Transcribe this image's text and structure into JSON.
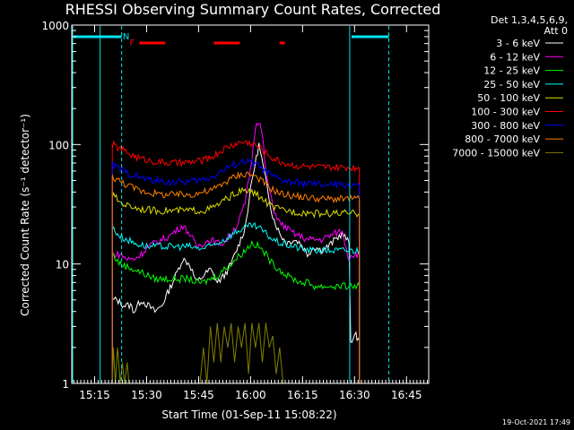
{
  "chart_data": {
    "type": "line",
    "title": "RHESSI Observing Summary Count Rates, Corrected",
    "xlabel": "Start Time (01-Sep-11 15:08:22)",
    "ylabel": "Corrected Count Rate (s⁻¹ detector⁻¹)",
    "y_scale": "log",
    "ylim": [
      1,
      1000
    ],
    "xlim_minutes_after_start": [
      0,
      103
    ],
    "x_ticks": [
      {
        "label": "15:15",
        "minute": 6.6
      },
      {
        "label": "15:30",
        "minute": 21.6
      },
      {
        "label": "15:45",
        "minute": 36.6
      },
      {
        "label": "16:00",
        "minute": 51.6
      },
      {
        "label": "16:15",
        "minute": 66.6
      },
      {
        "label": "16:30",
        "minute": 81.6
      },
      {
        "label": "16:45",
        "minute": 96.6
      }
    ],
    "y_ticks": [
      {
        "label": "1",
        "value": 1
      },
      {
        "label": "10",
        "value": 10
      },
      {
        "label": "100",
        "value": 100
      },
      {
        "label": "1000",
        "value": 1000
      }
    ],
    "legend_header": [
      "Det 1,3,4,5,6,9,",
      "Att 0"
    ],
    "legend_placement": "right",
    "flags": {
      "night_label": "N",
      "flare_label": "F",
      "night_color": "#00e5ee",
      "flare_color": "#ff0000",
      "night_bars": [
        [
          0,
          14.4
        ],
        [
          80.2,
          91.5
        ]
      ],
      "night_boundaries": [
        14.4,
        80.2,
        91.5
      ],
      "flare_bars": [
        [
          19.5,
          27.0
        ],
        [
          41.0,
          48.5
        ],
        [
          60.0,
          61.5
        ]
      ]
    },
    "series": [
      {
        "name": "3 - 6 keV",
        "color": "#ffffff",
        "x": [
          11.7,
          13,
          15,
          17,
          18,
          20,
          22,
          24,
          26,
          28,
          30,
          32,
          34,
          36,
          38,
          40,
          42,
          44,
          46,
          48,
          50,
          52,
          54,
          56,
          58,
          60,
          62,
          64,
          66,
          68,
          70,
          72,
          74,
          76,
          78,
          80.0,
          80.5,
          82,
          83
        ],
        "y": [
          5,
          5,
          4.5,
          4.5,
          4,
          5,
          4.5,
          4,
          4.5,
          6,
          8,
          11,
          10,
          7,
          8,
          9,
          7,
          8,
          10,
          14,
          20,
          50,
          100,
          50,
          25,
          18,
          15,
          16,
          15,
          12,
          14,
          13,
          14,
          16,
          18,
          15,
          2.3,
          2.5,
          2.3
        ]
      },
      {
        "name": "6 - 12 keV",
        "color": "#ff00ff",
        "x": [
          11.7,
          14,
          16,
          18,
          20,
          22,
          24,
          26,
          28,
          30,
          32,
          34,
          36,
          38,
          40,
          42,
          44,
          46,
          48,
          50,
          52,
          53,
          54,
          55,
          56,
          58,
          60,
          62,
          64,
          66,
          68,
          70,
          72,
          74,
          76,
          78,
          80.0,
          80.5,
          82,
          83
        ],
        "y": [
          12,
          12,
          11,
          11,
          12,
          14,
          15,
          16,
          17,
          19,
          21,
          18,
          14,
          15,
          16,
          15,
          15,
          18,
          22,
          32,
          75,
          145,
          160,
          120,
          60,
          30,
          22,
          20,
          18,
          17,
          16,
          16,
          16,
          17,
          18,
          19,
          11,
          12,
          12,
          12
        ]
      },
      {
        "name": "12 - 25 keV",
        "color": "#00ff00",
        "x": [
          11.7,
          14,
          16,
          18,
          20,
          22,
          24,
          26,
          28,
          30,
          32,
          34,
          36,
          38,
          40,
          42,
          44,
          46,
          48,
          50,
          52,
          54,
          56,
          58,
          60,
          62,
          64,
          66,
          68,
          70,
          72,
          74,
          76,
          78,
          80.0,
          80.5,
          82,
          83
        ],
        "y": [
          12,
          10,
          9.5,
          9,
          8.5,
          8,
          7.5,
          7.5,
          7.5,
          7.5,
          7.5,
          7.5,
          7,
          7,
          7.5,
          8,
          9,
          10,
          11.5,
          13,
          15,
          14,
          12,
          10,
          9,
          8,
          7.5,
          7,
          7,
          6.5,
          6.5,
          6.5,
          6.5,
          6.5,
          6.5,
          6.5,
          6.5,
          6.5
        ]
      },
      {
        "name": "25 - 50 keV",
        "color": "#00ffff",
        "x": [
          11.7,
          14,
          16,
          18,
          20,
          22,
          24,
          26,
          28,
          30,
          32,
          34,
          36,
          38,
          40,
          42,
          44,
          46,
          48,
          50,
          52,
          54,
          56,
          58,
          60,
          62,
          64,
          66,
          68,
          70,
          72,
          74,
          76,
          78,
          80.0,
          80.5,
          82,
          83
        ],
        "y": [
          20,
          17,
          16,
          15,
          14.5,
          14,
          14,
          14,
          14,
          14,
          14,
          14,
          13.5,
          13.5,
          14,
          15,
          16,
          17.5,
          19,
          20,
          21,
          20,
          18,
          16,
          15,
          14.5,
          14,
          13.5,
          13,
          13,
          13,
          13,
          13,
          13,
          13,
          13,
          13,
          13
        ]
      },
      {
        "name": "50 - 100 keV",
        "color": "#dddd00",
        "x": [
          11.7,
          14,
          16,
          18,
          20,
          22,
          24,
          26,
          28,
          30,
          32,
          34,
          36,
          38,
          40,
          42,
          44,
          46,
          48,
          50,
          52,
          54,
          56,
          58,
          60,
          62,
          64,
          66,
          68,
          70,
          72,
          74,
          76,
          78,
          80.0,
          80.5,
          82,
          83
        ],
        "y": [
          38,
          33,
          31,
          30,
          29,
          28.5,
          28,
          28,
          28,
          28,
          28,
          28,
          28,
          28,
          29,
          31,
          34,
          37,
          40,
          41,
          40,
          37,
          33,
          30,
          28.5,
          28,
          27.5,
          27,
          27,
          26.5,
          26.5,
          26.5,
          26.5,
          26.5,
          26.5,
          26.5,
          26.5,
          26.5
        ]
      },
      {
        "name": "100 - 300 keV",
        "color": "#ff0000",
        "x": [
          11.7,
          14,
          16,
          18,
          20,
          22,
          24,
          26,
          28,
          30,
          32,
          34,
          36,
          38,
          40,
          42,
          44,
          46,
          48,
          50,
          52,
          54,
          56,
          58,
          60,
          62,
          64,
          66,
          68,
          70,
          72,
          74,
          76,
          78,
          80.0,
          80.5,
          82,
          83
        ],
        "y": [
          100,
          92,
          86,
          80,
          76,
          74,
          72,
          71,
          70,
          70,
          70,
          71,
          72,
          74,
          78,
          84,
          92,
          98,
          103,
          105,
          102,
          95,
          85,
          77,
          72,
          69,
          67,
          66,
          65,
          65,
          64,
          64,
          64,
          64,
          64,
          64,
          64,
          64
        ]
      },
      {
        "name": "300 - 800 keV",
        "color": "#0000ff",
        "x": [
          11.7,
          14,
          16,
          18,
          20,
          22,
          24,
          26,
          28,
          30,
          32,
          34,
          36,
          38,
          40,
          42,
          44,
          46,
          48,
          50,
          52,
          54,
          56,
          58,
          60,
          62,
          64,
          66,
          68,
          70,
          72,
          74,
          76,
          78,
          80.0,
          80.5,
          82,
          83
        ],
        "y": [
          68,
          62,
          58,
          55,
          53,
          51,
          50,
          49,
          48.5,
          48.5,
          48.5,
          49,
          50,
          51,
          53,
          57,
          62,
          66,
          70,
          72,
          71,
          66,
          59,
          54,
          51,
          49,
          48,
          47.5,
          47,
          46.5,
          46,
          46,
          46,
          46,
          46,
          46,
          46,
          46
        ]
      },
      {
        "name": "800 - 7000 keV",
        "color": "#ff8000",
        "x": [
          11.7,
          14,
          16,
          18,
          20,
          22,
          24,
          26,
          28,
          30,
          32,
          34,
          36,
          38,
          40,
          42,
          44,
          46,
          48,
          50,
          52,
          54,
          56,
          58,
          60,
          62,
          64,
          66,
          68,
          70,
          72,
          74,
          76,
          78,
          80.0,
          80.5,
          82,
          83
        ],
        "y": [
          54,
          49,
          46,
          43,
          41,
          40,
          39,
          38,
          38,
          38,
          38,
          38,
          39,
          40,
          41,
          44,
          48,
          52,
          55,
          57,
          56,
          52,
          46,
          42,
          39,
          38,
          37,
          36.5,
          36,
          35.5,
          35,
          35,
          35,
          35,
          35,
          35,
          35,
          35
        ]
      },
      {
        "name": "7000 - 15000 keV",
        "color": "#808000",
        "x": [
          11.7,
          12,
          12.6,
          13.2,
          14,
          14.6,
          15.2,
          16,
          16.5,
          37,
          38,
          39,
          40,
          41,
          42,
          43,
          44,
          45,
          46,
          47,
          48,
          49,
          50,
          51,
          52,
          53,
          54,
          55,
          56,
          57,
          58,
          59,
          60,
          61,
          62
        ],
        "y": [
          1,
          2,
          1,
          2,
          1,
          1.5,
          1,
          1.5,
          1,
          1,
          2,
          1,
          3,
          1.5,
          3.2,
          1.5,
          3,
          2,
          3.2,
          1.5,
          3,
          2,
          3.2,
          1.2,
          3.2,
          2,
          3.2,
          1.5,
          3.2,
          2,
          2.5,
          1.2,
          2,
          1,
          1
        ]
      }
    ]
  },
  "footer": {
    "timestamp": "19-Oct-2021 17:49"
  }
}
